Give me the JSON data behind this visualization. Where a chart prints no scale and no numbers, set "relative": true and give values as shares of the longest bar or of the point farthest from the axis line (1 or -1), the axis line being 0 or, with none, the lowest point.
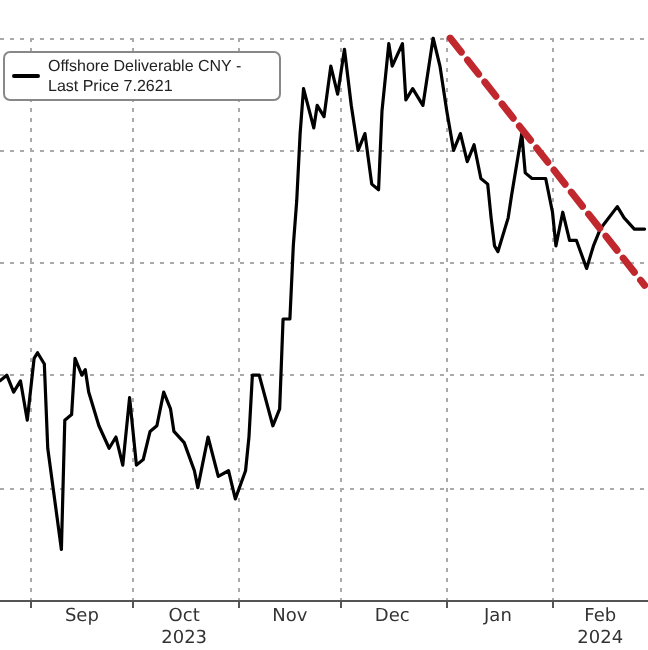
{
  "chart_data": {
    "type": "line",
    "relative": true,
    "xlim": [
      "2023-08-23",
      "2024-02-29"
    ],
    "xticks": [
      {
        "value": "2023-09-01",
        "label": null
      },
      {
        "value": "2023-09-16",
        "label": "Sep"
      },
      {
        "value": "2023-10-01",
        "label": null
      },
      {
        "value": "2023-10-16",
        "label": "Oct\n2023"
      },
      {
        "value": "2023-11-01",
        "label": null
      },
      {
        "value": "2023-11-16",
        "label": "Nov"
      },
      {
        "value": "2023-12-01",
        "label": null
      },
      {
        "value": "2023-12-16",
        "label": "Dec"
      },
      {
        "value": "2024-01-01",
        "label": null
      },
      {
        "value": "2024-01-16",
        "label": "Jan"
      },
      {
        "value": "2024-02-01",
        "label": null
      },
      {
        "value": "2024-02-15",
        "label": "Feb\n2024"
      }
    ],
    "grid": true,
    "legend": "top left",
    "marker": "none",
    "line_style": "solid",
    "series": [
      {
        "name": "Offshore Deliverable CNY - Last Price 7.2621",
        "color": "#000000",
        "x": [
          "2023-08-23",
          "2023-08-25",
          "2023-08-27",
          "2023-08-29",
          "2023-08-31",
          "2023-09-02",
          "2023-09-03",
          "2023-09-05",
          "2023-09-06",
          "2023-09-10",
          "2023-09-11",
          "2023-09-13",
          "2023-09-14",
          "2023-09-16",
          "2023-09-17",
          "2023-09-18",
          "2023-09-21",
          "2023-09-24",
          "2023-09-26",
          "2023-09-28",
          "2023-09-30",
          "2023-10-02",
          "2023-10-04",
          "2023-10-06",
          "2023-10-08",
          "2023-10-10",
          "2023-10-12",
          "2023-10-13",
          "2023-10-16",
          "2023-10-19",
          "2023-10-20",
          "2023-10-23",
          "2023-10-26",
          "2023-10-29",
          "2023-10-31",
          "2023-11-03",
          "2023-11-04",
          "2023-11-05",
          "2023-11-07",
          "2023-11-11",
          "2023-11-13",
          "2023-11-14",
          "2023-11-16",
          "2023-11-17",
          "2023-11-18",
          "2023-11-19",
          "2023-11-20",
          "2023-11-23",
          "2023-11-24",
          "2023-11-26",
          "2023-11-28",
          "2023-11-30",
          "2023-12-02",
          "2023-12-04",
          "2023-12-06",
          "2023-12-08",
          "2023-12-10",
          "2023-12-12",
          "2023-12-13",
          "2023-12-15",
          "2023-12-16",
          "2023-12-19",
          "2023-12-20",
          "2023-12-22",
          "2023-12-25",
          "2023-12-26",
          "2023-12-28",
          "2023-12-30",
          "2024-01-01",
          "2024-01-03",
          "2024-01-05",
          "2024-01-07",
          "2024-01-09",
          "2024-01-11",
          "2024-01-13",
          "2024-01-14",
          "2024-01-15",
          "2024-01-16",
          "2024-01-19",
          "2024-01-20",
          "2024-01-23",
          "2024-01-24",
          "2024-01-26",
          "2024-01-30",
          "2024-02-01",
          "2024-02-02",
          "2024-02-04",
          "2024-02-06",
          "2024-02-08",
          "2024-02-11",
          "2024-02-13",
          "2024-02-15",
          "2024-02-20",
          "2024-02-22",
          "2024-02-25",
          "2024-02-28"
        ],
        "values": [
          0.39,
          0.4,
          0.37,
          0.39,
          0.32,
          0.43,
          0.44,
          0.42,
          0.27,
          0.09,
          0.32,
          0.33,
          0.43,
          0.4,
          0.41,
          0.37,
          0.31,
          0.27,
          0.29,
          0.24,
          0.36,
          0.24,
          0.25,
          0.3,
          0.31,
          0.37,
          0.34,
          0.3,
          0.28,
          0.23,
          0.2,
          0.29,
          0.22,
          0.23,
          0.18,
          0.23,
          0.29,
          0.4,
          0.4,
          0.31,
          0.34,
          0.5,
          0.5,
          0.63,
          0.71,
          0.83,
          0.91,
          0.84,
          0.88,
          0.86,
          0.95,
          0.9,
          0.98,
          0.88,
          0.8,
          0.83,
          0.74,
          0.73,
          0.87,
          0.99,
          0.95,
          0.99,
          0.89,
          0.91,
          0.88,
          0.92,
          1.0,
          0.95,
          0.87,
          0.8,
          0.83,
          0.78,
          0.81,
          0.75,
          0.74,
          0.68,
          0.63,
          0.62,
          0.68,
          0.72,
          0.83,
          0.76,
          0.75,
          0.75,
          0.69,
          0.63,
          0.69,
          0.64,
          0.64,
          0.59,
          0.63,
          0.66,
          0.7,
          0.68,
          0.66,
          0.66
        ]
      },
      {
        "type": "line",
        "color": "#c0282e",
        "line_style": "dashed",
        "x": [
          "2024-01-02",
          "2024-02-28"
        ],
        "values": [
          1.0,
          0.56
        ]
      }
    ]
  }
}
